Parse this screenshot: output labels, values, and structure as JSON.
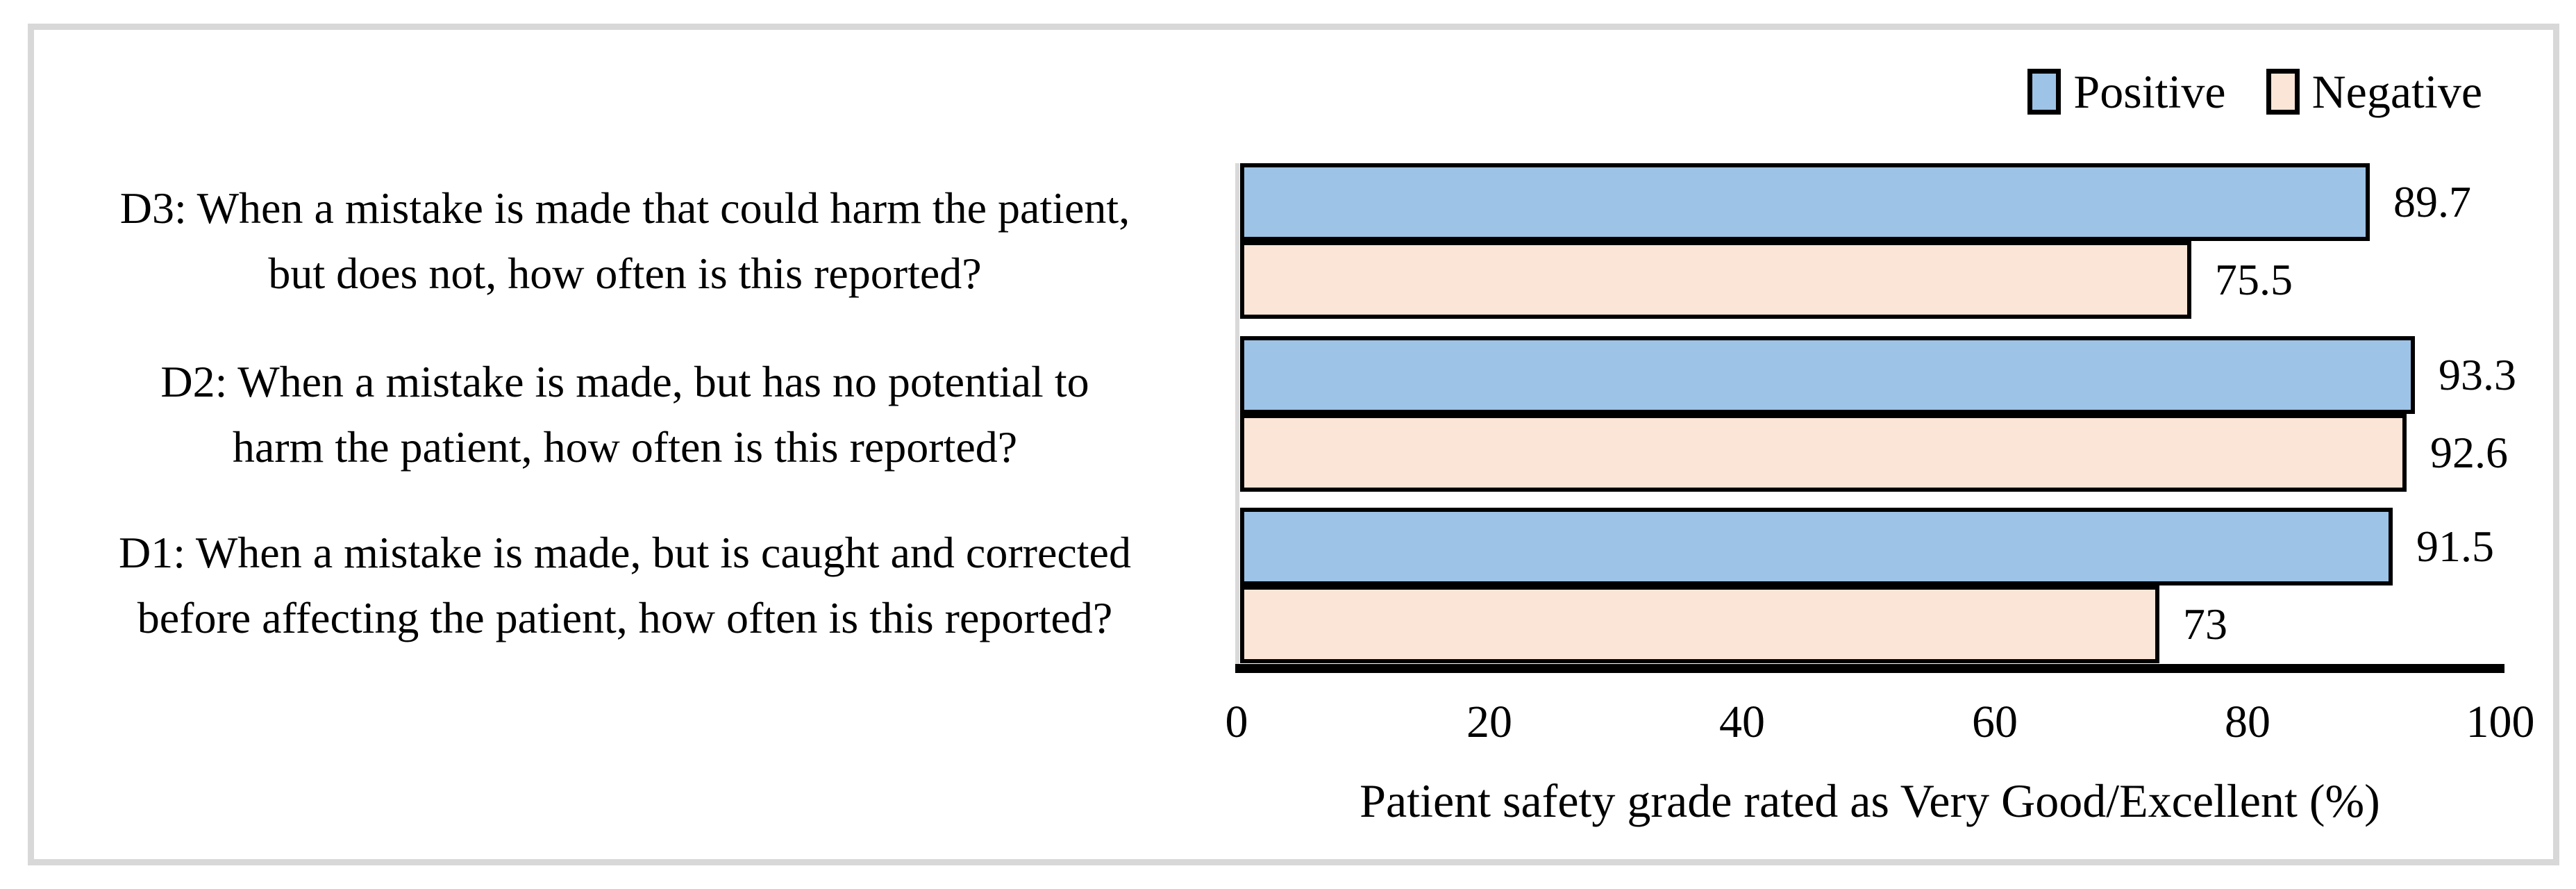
{
  "figure": {
    "background": "#FFFFFF",
    "frame_border_color": "#D8D8D8"
  },
  "legend": {
    "position": "top-right",
    "items": [
      {
        "label": "Positive",
        "color": "#9DC3E6"
      },
      {
        "label": "Negative",
        "color": "#FBE5D6"
      }
    ]
  },
  "chart_data": {
    "type": "bar",
    "orientation": "horizontal",
    "title": "",
    "xlabel": "Patient safety grade rated as Very Good/Excellent (%)",
    "xlim": [
      0,
      100
    ],
    "xticks": [
      "0",
      "20",
      "40",
      "60",
      "80",
      "100"
    ],
    "grid": "off",
    "legend_position": "top-right",
    "bar_border_color": "#000000",
    "categories": [
      "D3: When a mistake is made that could harm the patient, but does not, how often is this reported?",
      "D2: When a mistake is made, but has no potential to harm the patient, how often is this reported?",
      "D1: When a mistake is made, but is caught and corrected before affecting the patient, how often is this reported?"
    ],
    "category_lines": [
      [
        "D3: When a mistake is made that could harm the patient,",
        "but does not, how often is this reported?"
      ],
      [
        "D2: When a mistake is made, but has no potential to",
        "harm the patient, how often is this reported?"
      ],
      [
        "D1: When a mistake is made, but is caught and corrected",
        "before affecting the patient, how often is this reported?"
      ]
    ],
    "series": [
      {
        "name": "Positive",
        "color": "#9DC3E6",
        "values": [
          89.7,
          93.3,
          91.5
        ],
        "labels": [
          "89.7",
          "93.3",
          "91.5"
        ]
      },
      {
        "name": "Negative",
        "color": "#FBE5D6",
        "values": [
          75.5,
          92.6,
          73
        ],
        "labels": [
          "75.5",
          "92.6",
          "73"
        ]
      }
    ]
  }
}
